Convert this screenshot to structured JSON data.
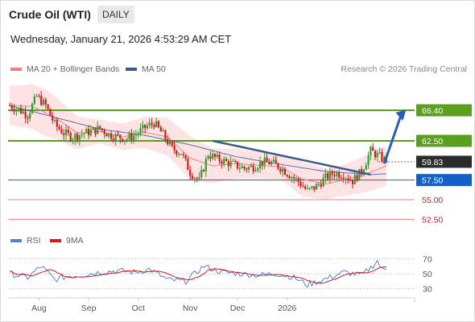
{
  "header": {
    "title": "Crude Oil (WTI)",
    "timeframe": "DAILY",
    "datetime": "Wednesday, January 21, 2026 4:53:29 AM CET"
  },
  "legend": {
    "ma20": "MA 20 + Bollinger Bands",
    "ma50": "MA 50",
    "credit": "Research © 2026 Trading Central"
  },
  "rsi_legend": {
    "rsi": "RSI",
    "ma9": "9MA"
  },
  "colors": {
    "resistance": "#5aa01e",
    "support": "#1560c8",
    "minor": "#f08080",
    "trendline": "#3b5a8c",
    "up": "#2f9e2f",
    "down": "#d01c1c",
    "band": "#fde3e3"
  },
  "chart_data": {
    "type": "candlestick",
    "x_ticks": [
      "Aug",
      "Sep",
      "Oct",
      "Nov",
      "Dec",
      "2026"
    ],
    "price_levels": [
      {
        "value": 66.4,
        "label": "66.40",
        "kind": "resistance"
      },
      {
        "value": 62.5,
        "label": "62.50",
        "kind": "resistance"
      },
      {
        "value": 59.83,
        "label": "59.83",
        "kind": "current"
      },
      {
        "value": 57.5,
        "label": "57.50",
        "kind": "pivot"
      },
      {
        "value": 55.0,
        "label": "55.00",
        "kind": "support"
      },
      {
        "value": 52.5,
        "label": "52.50",
        "kind": "support"
      }
    ],
    "price_anchors": [
      [
        0,
        67.0
      ],
      [
        4,
        66.5
      ],
      [
        8,
        65.8
      ],
      [
        12,
        68.2
      ],
      [
        16,
        67.0
      ],
      [
        20,
        64.6
      ],
      [
        24,
        63.5
      ],
      [
        28,
        63.0
      ],
      [
        32,
        63.4
      ],
      [
        36,
        63.7
      ],
      [
        40,
        64.1
      ],
      [
        44,
        63.3
      ],
      [
        48,
        63.0
      ],
      [
        52,
        62.8
      ],
      [
        56,
        63.3
      ],
      [
        60,
        64.2
      ],
      [
        64,
        64.8
      ],
      [
        68,
        63.3
      ],
      [
        72,
        61.5
      ],
      [
        76,
        61.0
      ],
      [
        80,
        58.5
      ],
      [
        84,
        57.4
      ],
      [
        88,
        60.8
      ],
      [
        92,
        60.2
      ],
      [
        96,
        59.8
      ],
      [
        100,
        59.4
      ],
      [
        104,
        59.0
      ],
      [
        108,
        59.2
      ],
      [
        112,
        59.8
      ],
      [
        116,
        59.7
      ],
      [
        120,
        59.1
      ],
      [
        124,
        58.2
      ],
      [
        128,
        57.3
      ],
      [
        132,
        56.1
      ],
      [
        136,
        56.7
      ],
      [
        140,
        57.8
      ],
      [
        144,
        58.4
      ],
      [
        148,
        58.2
      ],
      [
        152,
        57.4
      ],
      [
        156,
        58.6
      ],
      [
        160,
        61.2
      ],
      [
        164,
        60.5
      ],
      [
        167,
        59.83
      ]
    ],
    "ma50_anchors": [
      [
        0,
        67.0
      ],
      [
        20,
        65.5
      ],
      [
        40,
        64.0
      ],
      [
        60,
        63.2
      ],
      [
        80,
        62.0
      ],
      [
        100,
        60.5
      ],
      [
        120,
        59.5
      ],
      [
        140,
        58.6
      ],
      [
        160,
        58.2
      ],
      [
        167,
        58.3
      ]
    ],
    "ma20_anchors": [
      [
        0,
        67.0
      ],
      [
        10,
        66.9
      ],
      [
        20,
        65.5
      ],
      [
        30,
        63.5
      ],
      [
        40,
        63.7
      ],
      [
        50,
        63.0
      ],
      [
        60,
        63.6
      ],
      [
        70,
        63.0
      ],
      [
        80,
        60.3
      ],
      [
        90,
        59.3
      ],
      [
        100,
        59.6
      ],
      [
        110,
        59.4
      ],
      [
        120,
        59.2
      ],
      [
        130,
        57.6
      ],
      [
        140,
        57.0
      ],
      [
        150,
        57.6
      ],
      [
        160,
        58.5
      ],
      [
        167,
        59.3
      ]
    ],
    "bb_width_anchors": [
      [
        0,
        2.5
      ],
      [
        15,
        3.0
      ],
      [
        25,
        2.4
      ],
      [
        40,
        1.5
      ],
      [
        55,
        1.8
      ],
      [
        65,
        2.2
      ],
      [
        80,
        2.8
      ],
      [
        90,
        2.2
      ],
      [
        105,
        1.8
      ],
      [
        120,
        1.6
      ],
      [
        130,
        2.2
      ],
      [
        145,
        1.9
      ],
      [
        160,
        2.4
      ],
      [
        167,
        2.5
      ]
    ],
    "rsi_anchors": [
      [
        0,
        50
      ],
      [
        8,
        45
      ],
      [
        14,
        60
      ],
      [
        20,
        42
      ],
      [
        26,
        47
      ],
      [
        32,
        48
      ],
      [
        40,
        52
      ],
      [
        48,
        54
      ],
      [
        56,
        52
      ],
      [
        62,
        56
      ],
      [
        70,
        42
      ],
      [
        78,
        40
      ],
      [
        86,
        60
      ],
      [
        94,
        52
      ],
      [
        102,
        50
      ],
      [
        110,
        48
      ],
      [
        118,
        50
      ],
      [
        126,
        45
      ],
      [
        132,
        35
      ],
      [
        140,
        43
      ],
      [
        148,
        52
      ],
      [
        156,
        48
      ],
      [
        160,
        58
      ],
      [
        163,
        67
      ],
      [
        165,
        55
      ],
      [
        167,
        57
      ]
    ],
    "rsi_levels": [
      70,
      50,
      30
    ],
    "rsi_range": [
      20,
      80
    ],
    "price_range": [
      51.2,
      70.2
    ],
    "trendline": {
      "from": [
        90,
        62.5
      ],
      "to": [
        160,
        58.2
      ]
    },
    "projection": {
      "from": [
        166,
        59.6
      ],
      "to": [
        175,
        66.4
      ]
    }
  }
}
